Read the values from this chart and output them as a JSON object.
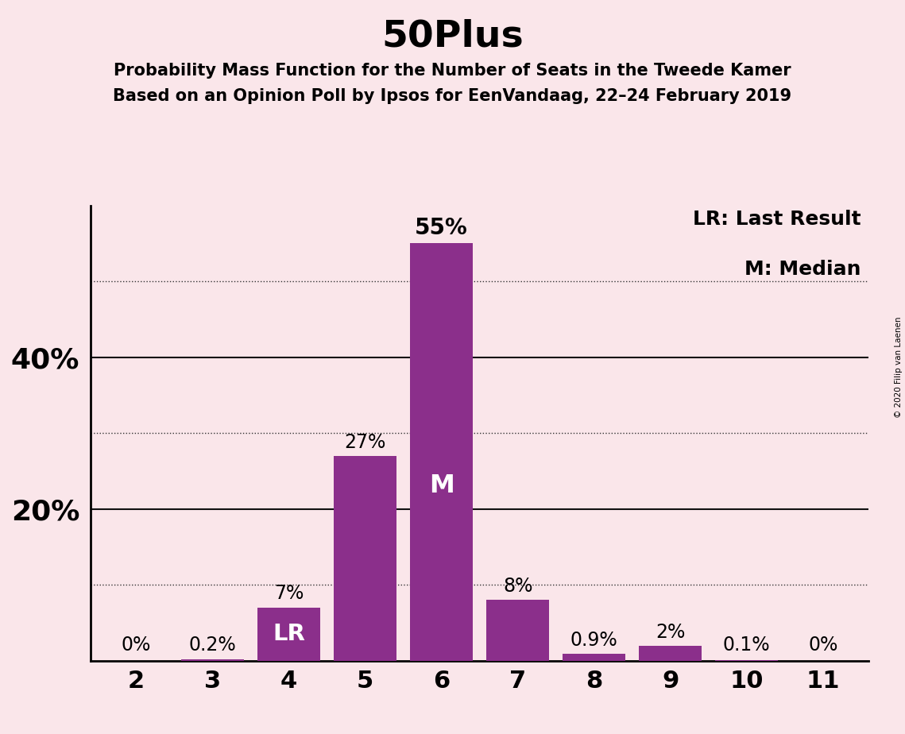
{
  "title": "50Plus",
  "subtitle1": "Probability Mass Function for the Number of Seats in the Tweede Kamer",
  "subtitle2": "Based on an Opinion Poll by Ipsos for EenVandaag, 22–24 February 2019",
  "copyright": "© 2020 Filip van Laenen",
  "categories": [
    2,
    3,
    4,
    5,
    6,
    7,
    8,
    9,
    10,
    11
  ],
  "values": [
    0.0,
    0.2,
    7.0,
    27.0,
    55.0,
    8.0,
    0.9,
    2.0,
    0.1,
    0.0
  ],
  "bar_labels": [
    "0%",
    "0.2%",
    "7%",
    "27%",
    "55%",
    "8%",
    "0.9%",
    "2%",
    "0.1%",
    "0%"
  ],
  "bar_color": "#8B2F8B",
  "background_color": "#FAE6EA",
  "last_result_seat": 4,
  "median_seat": 6,
  "lr_label": "LR",
  "m_label": "M",
  "legend_lr": "LR: Last Result",
  "legend_m": "M: Median",
  "ymax": 60,
  "dotted_yticks": [
    10,
    30,
    50
  ],
  "solid_yticks": [
    20,
    40
  ],
  "ytick_labels_solid": [
    "20%",
    "40%"
  ],
  "title_fontsize": 34,
  "subtitle_fontsize": 15,
  "bar_label_fontsize": 17,
  "axis_tick_fontsize": 22,
  "legend_fontsize": 18,
  "ylabel_fontsize": 26
}
